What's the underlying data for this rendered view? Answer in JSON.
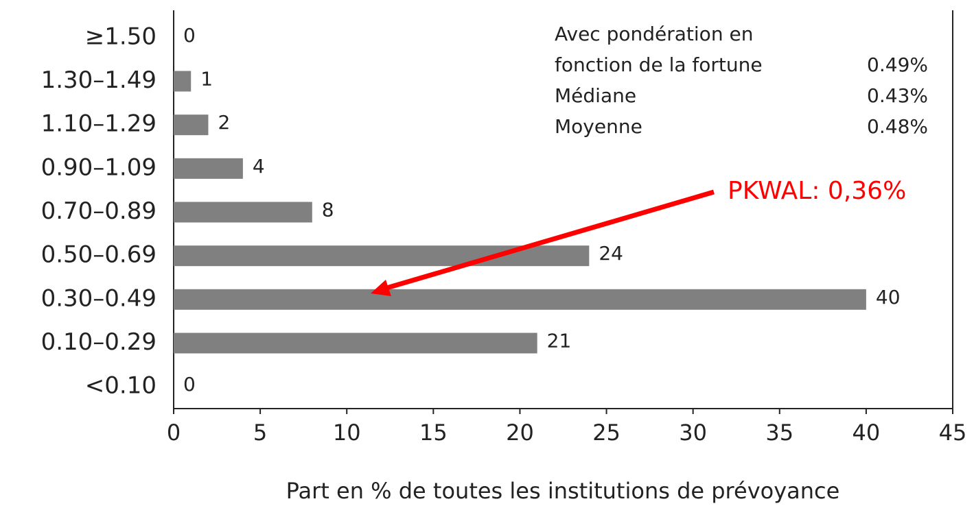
{
  "chart_data": {
    "type": "bar",
    "orientation": "horizontal",
    "categories": [
      "≥1.50",
      "1.30–1.49",
      "1.10–1.29",
      "0.90–1.09",
      "0.70–0.89",
      "0.50–0.69",
      "0.30–0.49",
      "0.10–0.29",
      "<0.10"
    ],
    "values": [
      0,
      1,
      2,
      4,
      8,
      24,
      40,
      21,
      0
    ],
    "color": "#808080",
    "xlim": [
      0,
      45
    ],
    "xticks": [
      0,
      5,
      10,
      15,
      20,
      25,
      30,
      35,
      40,
      45
    ],
    "xlabel": "Part en % de toutes les institutions de prévoyance",
    "stats": [
      {
        "label": [
          "Avec pondération en",
          "fonction de la fortune"
        ],
        "value": "0.49%"
      },
      {
        "label": [
          "Médiane"
        ],
        "value": "0.43%"
      },
      {
        "label": [
          "Moyenne"
        ],
        "value": "0.48%"
      }
    ],
    "annotation": {
      "text": "PKWAL: 0,36%",
      "color": "#ff0000"
    }
  }
}
